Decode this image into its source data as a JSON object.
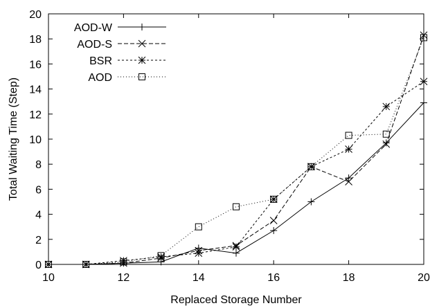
{
  "chart_data": {
    "type": "line",
    "xlabel": "Replaced Storage Number",
    "ylabel": "Total Waiting Time (Step)",
    "xlim": [
      10,
      20
    ],
    "ylim": [
      0,
      20
    ],
    "xticks": [
      "10",
      "12",
      "14",
      "16",
      "18",
      "20"
    ],
    "yticks": [
      "0",
      "2",
      "4",
      "6",
      "8",
      "10",
      "12",
      "14",
      "16",
      "18",
      "20"
    ],
    "grid": false,
    "legend_position": "top-left",
    "x": [
      10,
      11,
      12,
      13,
      14,
      15,
      16,
      17,
      18,
      19,
      20
    ],
    "series": [
      {
        "name": "AOD-W",
        "marker": "plus",
        "dash": "solid",
        "values": [
          0,
          0,
          0.1,
          0.2,
          1.3,
          0.9,
          2.7,
          5.0,
          6.9,
          9.7,
          12.9
        ]
      },
      {
        "name": "AOD-S",
        "marker": "cross",
        "dash": "dashed",
        "values": [
          0,
          0,
          0.1,
          0.5,
          1.1,
          1.5,
          3.5,
          7.8,
          6.6,
          9.6,
          18.3
        ]
      },
      {
        "name": "BSR",
        "marker": "star",
        "dash": "short-dashed",
        "values": [
          0,
          0,
          0.3,
          0.6,
          0.9,
          1.4,
          5.2,
          7.8,
          9.2,
          12.6,
          14.6
        ]
      },
      {
        "name": "AOD",
        "marker": "square",
        "dash": "dotted",
        "values": [
          0,
          0,
          0.2,
          0.7,
          3.0,
          4.6,
          5.2,
          7.8,
          10.3,
          10.4,
          18.1
        ]
      }
    ]
  }
}
